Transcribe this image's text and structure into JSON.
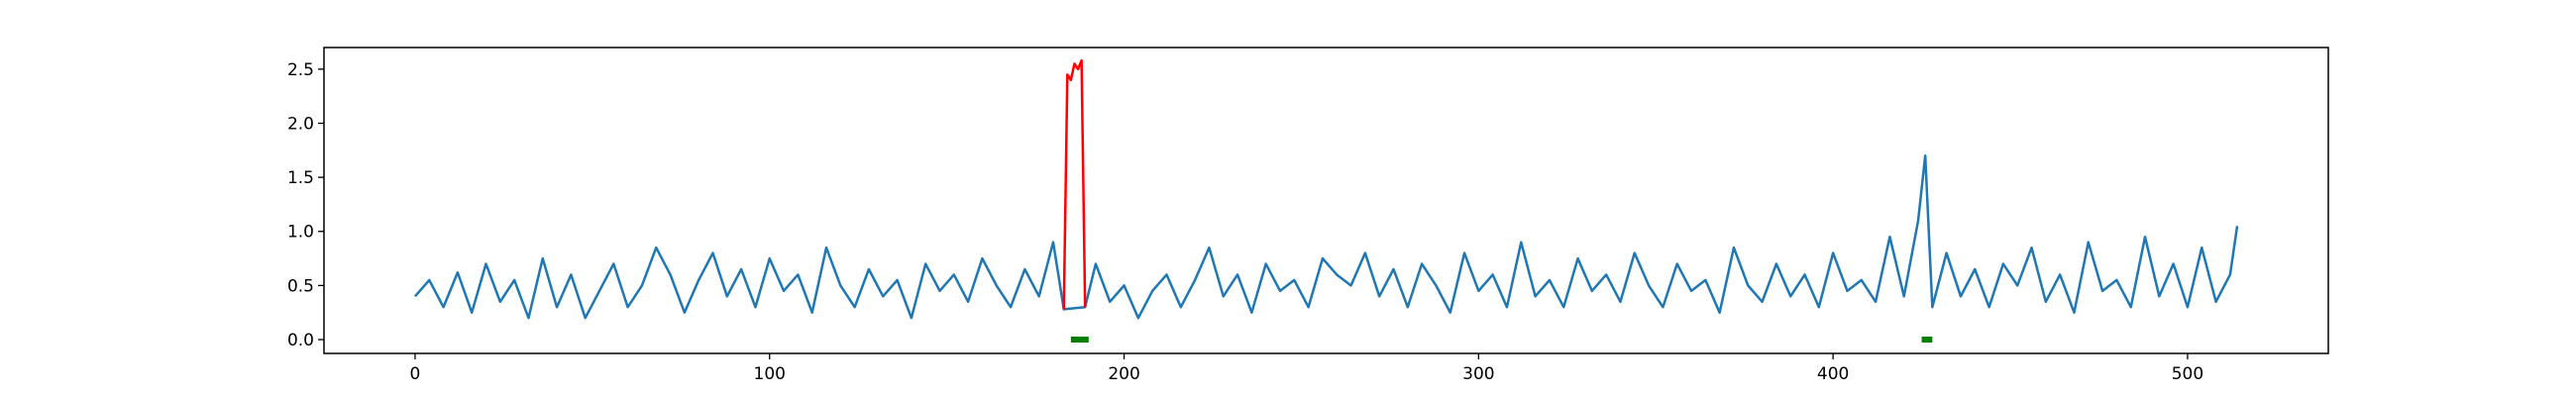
{
  "chart_data": {
    "type": "line",
    "xlim": [
      -25.7,
      539.7
    ],
    "ylim": [
      -0.128,
      2.7
    ],
    "xticks": [
      0,
      100,
      200,
      300,
      400,
      500
    ],
    "yticks": [
      {
        "value": 0,
        "label": "0.0"
      },
      0.5,
      {
        "value": 1,
        "label": "1.0"
      },
      1.5,
      {
        "value": 2,
        "label": "2.0"
      },
      2.5
    ],
    "series": [
      {
        "color": "#1f77b4",
        "x": [
          0,
          4,
          8,
          12,
          16,
          20,
          24,
          28,
          32,
          36,
          40,
          44,
          48,
          52,
          56,
          60,
          64,
          68,
          72,
          76,
          80,
          84,
          88,
          92,
          96,
          100,
          104,
          108,
          112,
          116,
          120,
          124,
          128,
          132,
          136,
          140,
          144,
          148,
          152,
          156,
          160,
          164,
          168,
          172,
          176,
          180,
          183,
          189,
          192,
          196,
          200,
          204,
          208,
          212,
          216,
          220,
          224,
          228,
          232,
          236,
          240,
          244,
          248,
          252,
          256,
          260,
          264,
          268,
          272,
          276,
          280,
          284,
          288,
          292,
          296,
          300,
          304,
          308,
          312,
          316,
          320,
          324,
          328,
          332,
          336,
          340,
          344,
          348,
          352,
          356,
          360,
          364,
          368,
          372,
          376,
          380,
          384,
          388,
          392,
          396,
          400,
          404,
          408,
          412,
          416,
          420,
          424,
          426,
          428,
          432,
          436,
          440,
          444,
          448,
          452,
          456,
          460,
          464,
          468,
          472,
          476,
          480,
          484,
          488,
          492,
          496,
          500,
          504,
          508,
          512,
          514
        ],
        "values": [
          0.4,
          0.55,
          0.3,
          0.62,
          0.25,
          0.7,
          0.35,
          0.55,
          0.2,
          0.75,
          0.3,
          0.6,
          0.2,
          0.45,
          0.7,
          0.3,
          0.5,
          0.85,
          0.6,
          0.25,
          0.55,
          0.8,
          0.4,
          0.65,
          0.3,
          0.75,
          0.45,
          0.6,
          0.25,
          0.85,
          0.5,
          0.3,
          0.65,
          0.4,
          0.55,
          0.2,
          0.7,
          0.45,
          0.6,
          0.35,
          0.75,
          0.5,
          0.3,
          0.65,
          0.4,
          0.9,
          0.28,
          0.3,
          0.7,
          0.35,
          0.5,
          0.2,
          0.45,
          0.6,
          0.3,
          0.55,
          0.85,
          0.4,
          0.6,
          0.25,
          0.7,
          0.45,
          0.55,
          0.3,
          0.75,
          0.6,
          0.5,
          0.8,
          0.4,
          0.65,
          0.3,
          0.7,
          0.5,
          0.25,
          0.8,
          0.45,
          0.6,
          0.3,
          0.9,
          0.4,
          0.55,
          0.3,
          0.75,
          0.45,
          0.6,
          0.35,
          0.8,
          0.5,
          0.3,
          0.7,
          0.45,
          0.55,
          0.25,
          0.85,
          0.5,
          0.35,
          0.7,
          0.4,
          0.6,
          0.3,
          0.8,
          0.45,
          0.55,
          0.35,
          0.95,
          0.4,
          1.1,
          1.7,
          0.3,
          0.8,
          0.4,
          0.65,
          0.3,
          0.7,
          0.5,
          0.85,
          0.35,
          0.6,
          0.25,
          0.9,
          0.45,
          0.55,
          0.3,
          0.95,
          0.4,
          0.7,
          0.3,
          0.85,
          0.35,
          0.6,
          1.05
        ]
      },
      {
        "color": "#ff0000",
        "x": [
          183,
          184,
          185,
          186,
          187,
          188,
          189
        ],
        "values": [
          0.28,
          2.45,
          2.4,
          2.55,
          2.5,
          2.58,
          0.3
        ]
      },
      {
        "color": "#008000",
        "x": [
          185,
          186,
          187,
          188,
          189,
          190
        ],
        "values": [
          0,
          0,
          0,
          0,
          0,
          0
        ]
      },
      {
        "color": "#008000",
        "x": [
          425,
          426,
          427,
          428
        ],
        "values": [
          0,
          0,
          0,
          0
        ]
      }
    ]
  }
}
